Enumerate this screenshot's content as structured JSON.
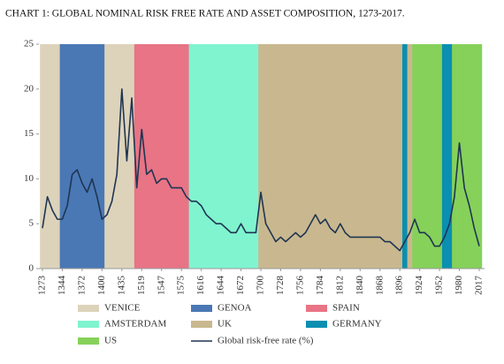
{
  "chart_data": {
    "type": "line",
    "title": "CHART 1: GLOBAL NOMINAL RISK FREE RATE AND ASSET COMPOSITION, 1273-2017.",
    "categories": [
      "1273",
      null,
      null,
      null,
      "1344",
      null,
      null,
      null,
      "1372",
      null,
      null,
      null,
      "1400",
      null,
      null,
      null,
      "1435",
      null,
      null,
      null,
      "1519",
      null,
      null,
      null,
      "1547",
      null,
      null,
      null,
      "1575",
      null,
      null,
      null,
      "1616",
      null,
      null,
      null,
      "1644",
      null,
      null,
      null,
      "1672",
      null,
      null,
      null,
      "1700",
      null,
      null,
      null,
      "1728",
      null,
      null,
      null,
      "1756",
      null,
      null,
      null,
      "1784",
      null,
      null,
      null,
      "1812",
      null,
      null,
      null,
      "1840",
      null,
      null,
      null,
      "1868",
      null,
      null,
      null,
      "1896",
      null,
      null,
      null,
      "1924",
      null,
      null,
      null,
      "1952",
      null,
      null,
      null,
      "1980",
      null,
      null,
      null,
      "2017"
    ],
    "bands": [
      {
        "name": "VENICE",
        "color": "#ddd3bb"
      },
      {
        "name": "GENOA",
        "color": "#4a78b5"
      },
      {
        "name": "SPAIN",
        "color": "#e87485"
      },
      {
        "name": "AMSTERDAM",
        "color": "#80f4cf"
      },
      {
        "name": "UK",
        "color": "#c9b88f"
      },
      {
        "name": "GERMANY",
        "color": "#0a8fb0"
      },
      {
        "name": "US",
        "color": "#86d15a"
      }
    ],
    "regime": [
      "VENICE",
      "VENICE",
      "VENICE",
      "VENICE",
      "GENOA",
      "GENOA",
      "GENOA",
      "GENOA",
      "GENOA",
      "GENOA",
      "GENOA",
      "GENOA",
      "GENOA",
      "VENICE",
      "VENICE",
      "VENICE",
      "VENICE",
      "VENICE",
      "VENICE",
      "SPAIN",
      "SPAIN",
      "SPAIN",
      "SPAIN",
      "SPAIN",
      "SPAIN",
      "SPAIN",
      "SPAIN",
      "SPAIN",
      "SPAIN",
      "SPAIN",
      "AMSTERDAM",
      "AMSTERDAM",
      "AMSTERDAM",
      "AMSTERDAM",
      "AMSTERDAM",
      "AMSTERDAM",
      "AMSTERDAM",
      "AMSTERDAM",
      "AMSTERDAM",
      "AMSTERDAM",
      "AMSTERDAM",
      "AMSTERDAM",
      "AMSTERDAM",
      "AMSTERDAM",
      "UK",
      "UK",
      "UK",
      "UK",
      "UK",
      "UK",
      "UK",
      "UK",
      "UK",
      "UK",
      "UK",
      "UK",
      "UK",
      "UK",
      "UK",
      "UK",
      "UK",
      "UK",
      "UK",
      "UK",
      "UK",
      "UK",
      "UK",
      "UK",
      "UK",
      "UK",
      "UK",
      "UK",
      "UK",
      "GERMANY",
      "UK",
      "US",
      "US",
      "US",
      "US",
      "US",
      "US",
      "GERMANY",
      "GERMANY",
      "US",
      "US",
      "US",
      "US",
      "US",
      "US"
    ],
    "series": [
      {
        "name": "Global risk-free rate (%)",
        "color": "#1f3552",
        "values": [
          4.5,
          8,
          6.5,
          5.5,
          5.5,
          7,
          10.5,
          11,
          9.5,
          8.5,
          10,
          8,
          5.5,
          6,
          7.5,
          10.5,
          20,
          12,
          19,
          9,
          15.5,
          10.5,
          11,
          9.5,
          10,
          10,
          9,
          9,
          9,
          8,
          7.5,
          7.5,
          7,
          6,
          5.5,
          5,
          5,
          4.5,
          4,
          4,
          5,
          4,
          4,
          4,
          8.5,
          5,
          4,
          3,
          3.5,
          3,
          3.5,
          4,
          3.5,
          4,
          5,
          6,
          5,
          5.5,
          4.5,
          4,
          5,
          4,
          3.5,
          3.5,
          3.5,
          3.5,
          3.5,
          3.5,
          3.5,
          3,
          3,
          2.5,
          2,
          3,
          4,
          5.5,
          4,
          4,
          3.5,
          2.5,
          2.5,
          3.5,
          5,
          8,
          14,
          9,
          7,
          4.5,
          2.5
        ]
      }
    ],
    "ylim": [
      0,
      25
    ],
    "yticks": [
      0,
      5,
      10,
      15,
      20,
      25
    ]
  }
}
